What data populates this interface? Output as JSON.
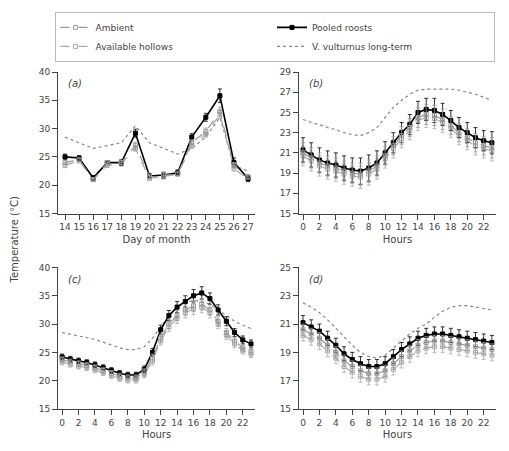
{
  "chart_data": [
    {
      "type": "line",
      "title": "(a)",
      "xlabel": "Day of month",
      "ylabel": "Temperature (°C)",
      "legend": "top",
      "grid": false,
      "x": [
        14,
        15,
        16,
        17,
        18,
        19,
        20,
        21,
        22,
        23,
        24,
        25,
        26,
        27
      ],
      "xlim": [
        13.5,
        27.5
      ],
      "xticks": [
        14,
        15,
        16,
        17,
        18,
        19,
        20,
        21,
        22,
        23,
        24,
        25,
        26,
        27
      ],
      "ylim": [
        15,
        40
      ],
      "yticks": [
        15,
        20,
        25,
        30,
        35,
        40
      ],
      "series": [
        {
          "name": "Ambient",
          "color": "#999999",
          "line_style": "dashed",
          "marker": "open_square",
          "values": [
            24.0,
            24.5,
            21.0,
            24.0,
            24.0,
            27.0,
            21.5,
            21.8,
            22.0,
            27.5,
            29.5,
            33.0,
            23.5,
            21.5
          ],
          "errors": [
            0.4,
            0.3,
            0.3,
            0.3,
            0.4,
            0.6,
            0.3,
            0.4,
            0.3,
            0.5,
            0.6,
            0.8,
            0.5,
            0.4
          ]
        },
        {
          "name": "Pooled roosts",
          "color": "#000000",
          "line_style": "solid",
          "marker": "square",
          "values": [
            25.0,
            24.8,
            21.3,
            24.0,
            24.0,
            29.2,
            21.6,
            21.8,
            22.2,
            28.5,
            32.0,
            35.8,
            24.0,
            21.2
          ],
          "errors": [
            0.5,
            0.4,
            0.4,
            0.3,
            0.5,
            0.7,
            0.4,
            0.5,
            0.5,
            0.6,
            0.7,
            1.2,
            0.8,
            0.5
          ]
        },
        {
          "name": "Available hollows",
          "color": "#aaaaaa",
          "line_style": "dashed",
          "marker": "open_square",
          "values": [
            23.5,
            24.3,
            21.0,
            23.5,
            23.8,
            26.5,
            21.2,
            21.5,
            22.0,
            27.0,
            29.0,
            32.5,
            23.0,
            21.0
          ],
          "errors": [
            0.4,
            0.3,
            0.3,
            0.3,
            0.4,
            0.5,
            0.3,
            0.4,
            0.3,
            0.5,
            0.5,
            0.7,
            0.5,
            0.4
          ]
        },
        {
          "name": "V. vulturnus long-term",
          "color": "#888888",
          "line_style": "dotted",
          "values": [
            28.5,
            27.5,
            26.5,
            27.0,
            27.5,
            30.5,
            27.5,
            26.5,
            25.5,
            26.5,
            28.5,
            32.0,
            23.5,
            22.5
          ]
        }
      ]
    },
    {
      "type": "line",
      "title": "(b)",
      "xlabel": "Hours",
      "grid": false,
      "x": [
        0,
        1,
        2,
        3,
        4,
        5,
        6,
        7,
        8,
        9,
        10,
        11,
        12,
        13,
        14,
        15,
        16,
        17,
        18,
        19,
        20,
        21,
        22,
        23
      ],
      "xlim": [
        -0.5,
        23.5
      ],
      "xticks": [
        0,
        2,
        4,
        6,
        8,
        10,
        12,
        14,
        16,
        18,
        20,
        22
      ],
      "ylim": [
        15,
        29
      ],
      "yticks": [
        15,
        17,
        19,
        21,
        23,
        25,
        27,
        29
      ],
      "series": [
        {
          "name": "Ambient",
          "color": "#999999",
          "line_style": "dashed",
          "marker": "open_square",
          "values": [
            21.0,
            20.5,
            20.0,
            19.7,
            19.5,
            19.2,
            19.0,
            18.9,
            19.2,
            19.7,
            20.7,
            21.7,
            22.7,
            23.5,
            24.5,
            24.8,
            24.7,
            24.3,
            23.7,
            23.0,
            22.5,
            22.0,
            21.7,
            21.5
          ],
          "errors": [
            1.0,
            1.0,
            1.0,
            1.0,
            1.0,
            1.0,
            1.0,
            1.1,
            1.1,
            1.0,
            0.9,
            0.9,
            0.9,
            0.9,
            1.0,
            1.0,
            1.0,
            1.0,
            0.9,
            0.9,
            0.9,
            0.9,
            0.9,
            1.0
          ]
        },
        {
          "name": "Pooled roosts",
          "color": "#000000",
          "line_style": "solid",
          "marker": "square",
          "values": [
            21.3,
            20.8,
            20.3,
            20.0,
            19.8,
            19.5,
            19.3,
            19.2,
            19.5,
            20.0,
            21.0,
            22.0,
            23.0,
            23.8,
            25.0,
            25.3,
            25.2,
            24.8,
            24.2,
            23.5,
            23.0,
            22.5,
            22.2,
            22.0
          ],
          "errors": [
            1.2,
            1.2,
            1.2,
            1.2,
            1.2,
            1.2,
            1.2,
            1.3,
            1.3,
            1.2,
            1.1,
            1.0,
            1.0,
            1.0,
            1.1,
            1.1,
            1.2,
            1.1,
            1.0,
            1.0,
            1.0,
            1.0,
            1.0,
            1.1
          ]
        },
        {
          "name": "Available hollows",
          "color": "#aaaaaa",
          "line_style": "dashed",
          "marker": "open_square",
          "values": [
            20.7,
            20.2,
            19.7,
            19.4,
            19.2,
            18.9,
            18.7,
            18.6,
            18.9,
            19.4,
            20.4,
            21.4,
            22.4,
            23.2,
            24.2,
            24.5,
            24.4,
            24.0,
            23.4,
            22.7,
            22.2,
            21.7,
            21.4,
            21.2
          ],
          "errors": [
            1.0,
            1.0,
            1.0,
            1.0,
            1.0,
            1.0,
            1.0,
            1.1,
            1.1,
            1.0,
            0.9,
            0.9,
            0.9,
            0.9,
            1.0,
            1.0,
            1.0,
            1.0,
            0.9,
            0.9,
            0.9,
            0.9,
            0.9,
            1.0
          ]
        },
        {
          "name": "V. vulturnus long-term",
          "color": "#888888",
          "line_style": "dotted",
          "values": [
            24.3,
            24.0,
            23.8,
            23.5,
            23.3,
            23.0,
            22.8,
            22.7,
            23.0,
            23.5,
            24.5,
            25.5,
            26.2,
            26.8,
            27.2,
            27.3,
            27.3,
            27.3,
            27.3,
            27.2,
            27.0,
            26.8,
            26.5,
            26.2
          ]
        }
      ]
    },
    {
      "type": "line",
      "title": "(c)",
      "xlabel": "Hours",
      "grid": false,
      "x": [
        0,
        1,
        2,
        3,
        4,
        5,
        6,
        7,
        8,
        9,
        10,
        11,
        12,
        13,
        14,
        15,
        16,
        17,
        18,
        19,
        20,
        21,
        22,
        23
      ],
      "xlim": [
        -0.5,
        23.5
      ],
      "xticks": [
        0,
        2,
        4,
        6,
        8,
        10,
        12,
        14,
        16,
        18,
        20,
        22
      ],
      "ylim": [
        15,
        40
      ],
      "yticks": [
        15,
        20,
        25,
        30,
        35,
        40
      ],
      "series": [
        {
          "name": "Ambient",
          "color": "#999999",
          "line_style": "dashed",
          "marker": "open_square",
          "values": [
            23.7,
            23.3,
            23.0,
            22.7,
            22.3,
            21.8,
            21.3,
            20.8,
            20.5,
            20.5,
            21.5,
            24.0,
            27.5,
            30.0,
            31.5,
            32.5,
            33.2,
            33.5,
            32.5,
            30.5,
            28.5,
            27.0,
            25.8,
            25.2
          ],
          "errors": [
            0.5,
            0.5,
            0.5,
            0.5,
            0.5,
            0.5,
            0.5,
            0.5,
            0.5,
            0.5,
            0.6,
            0.7,
            0.7,
            0.8,
            0.9,
            0.9,
            1.0,
            1.0,
            0.9,
            0.8,
            0.7,
            0.7,
            0.6,
            0.6
          ]
        },
        {
          "name": "Pooled roosts",
          "color": "#000000",
          "line_style": "solid",
          "marker": "square",
          "values": [
            24.2,
            23.8,
            23.5,
            23.2,
            22.8,
            22.3,
            21.8,
            21.3,
            21.0,
            21.0,
            22.0,
            25.0,
            29.0,
            31.5,
            33.0,
            34.0,
            35.0,
            35.5,
            34.5,
            32.5,
            30.5,
            28.5,
            27.2,
            26.5
          ],
          "errors": [
            0.5,
            0.5,
            0.5,
            0.5,
            0.5,
            0.5,
            0.5,
            0.5,
            0.5,
            0.5,
            0.6,
            0.7,
            0.8,
            0.9,
            1.0,
            1.0,
            1.1,
            1.1,
            1.0,
            0.9,
            0.8,
            0.7,
            0.7,
            0.7
          ]
        },
        {
          "name": "Available hollows",
          "color": "#aaaaaa",
          "line_style": "dashed",
          "marker": "open_square",
          "values": [
            23.3,
            22.9,
            22.6,
            22.3,
            21.9,
            21.4,
            20.9,
            20.4,
            20.1,
            20.1,
            21.1,
            23.5,
            27.0,
            29.5,
            31.0,
            32.0,
            32.7,
            33.0,
            32.0,
            30.0,
            28.0,
            26.5,
            25.3,
            24.7
          ],
          "errors": [
            0.5,
            0.5,
            0.5,
            0.5,
            0.5,
            0.5,
            0.5,
            0.5,
            0.5,
            0.5,
            0.6,
            0.7,
            0.7,
            0.8,
            0.9,
            0.9,
            1.0,
            1.0,
            0.9,
            0.8,
            0.7,
            0.7,
            0.6,
            0.6
          ]
        },
        {
          "name": "V. vulturnus long-term",
          "color": "#888888",
          "line_style": "dotted",
          "values": [
            28.5,
            28.2,
            28.0,
            27.7,
            27.3,
            26.8,
            26.3,
            25.8,
            25.5,
            25.5,
            26.0,
            27.5,
            29.5,
            31.5,
            33.0,
            33.8,
            34.2,
            34.0,
            33.5,
            32.5,
            31.5,
            30.5,
            29.8,
            29.2
          ]
        }
      ]
    },
    {
      "type": "line",
      "title": "(d)",
      "xlabel": "Hours",
      "grid": false,
      "x": [
        0,
        1,
        2,
        3,
        4,
        5,
        6,
        7,
        8,
        9,
        10,
        11,
        12,
        13,
        14,
        15,
        16,
        17,
        18,
        19,
        20,
        21,
        22,
        23
      ],
      "xlim": [
        -0.5,
        23.5
      ],
      "xticks": [
        0,
        2,
        4,
        6,
        8,
        10,
        12,
        14,
        16,
        18,
        20,
        22
      ],
      "ylim": [
        15,
        25
      ],
      "yticks": [
        15,
        17,
        19,
        21,
        23,
        25
      ],
      "series": [
        {
          "name": "Ambient",
          "color": "#999999",
          "line_style": "dashed",
          "marker": "open_square",
          "values": [
            20.6,
            20.3,
            20.0,
            19.5,
            19.0,
            18.4,
            18.0,
            17.7,
            17.5,
            17.5,
            17.7,
            18.2,
            18.7,
            19.1,
            19.5,
            19.7,
            19.8,
            19.8,
            19.7,
            19.6,
            19.5,
            19.4,
            19.3,
            19.2
          ],
          "errors": [
            0.4,
            0.4,
            0.4,
            0.4,
            0.4,
            0.4,
            0.4,
            0.4,
            0.4,
            0.4,
            0.4,
            0.4,
            0.4,
            0.4,
            0.4,
            0.4,
            0.4,
            0.4,
            0.4,
            0.4,
            0.4,
            0.4,
            0.4,
            0.4
          ]
        },
        {
          "name": "Pooled roosts",
          "color": "#000000",
          "line_style": "solid",
          "marker": "square",
          "values": [
            21.1,
            20.8,
            20.5,
            20.0,
            19.5,
            18.9,
            18.5,
            18.2,
            18.0,
            18.0,
            18.2,
            18.7,
            19.2,
            19.6,
            20.0,
            20.2,
            20.3,
            20.3,
            20.2,
            20.1,
            20.0,
            19.9,
            19.8,
            19.7
          ],
          "errors": [
            0.5,
            0.5,
            0.5,
            0.5,
            0.5,
            0.5,
            0.5,
            0.5,
            0.5,
            0.5,
            0.5,
            0.5,
            0.5,
            0.5,
            0.5,
            0.5,
            0.5,
            0.5,
            0.5,
            0.5,
            0.5,
            0.5,
            0.5,
            0.5
          ]
        },
        {
          "name": "Available hollows",
          "color": "#aaaaaa",
          "line_style": "dashed",
          "marker": "open_square",
          "values": [
            20.2,
            19.9,
            19.6,
            19.1,
            18.6,
            18.0,
            17.6,
            17.3,
            17.1,
            17.1,
            17.3,
            17.8,
            18.3,
            18.7,
            19.1,
            19.3,
            19.4,
            19.4,
            19.3,
            19.2,
            19.1,
            19.0,
            18.9,
            18.8
          ],
          "errors": [
            0.4,
            0.4,
            0.4,
            0.4,
            0.4,
            0.4,
            0.4,
            0.4,
            0.4,
            0.4,
            0.4,
            0.4,
            0.4,
            0.4,
            0.4,
            0.4,
            0.4,
            0.4,
            0.4,
            0.4,
            0.4,
            0.4,
            0.4,
            0.4
          ]
        },
        {
          "name": "V. vulturnus long-term",
          "color": "#888888",
          "line_style": "dotted",
          "values": [
            22.5,
            22.2,
            21.8,
            21.3,
            20.7,
            20.1,
            19.5,
            19.0,
            18.7,
            18.6,
            18.8,
            19.3,
            19.8,
            20.3,
            20.7,
            21.0,
            21.5,
            21.9,
            22.2,
            22.3,
            22.3,
            22.2,
            22.1,
            22.0
          ]
        }
      ]
    }
  ]
}
